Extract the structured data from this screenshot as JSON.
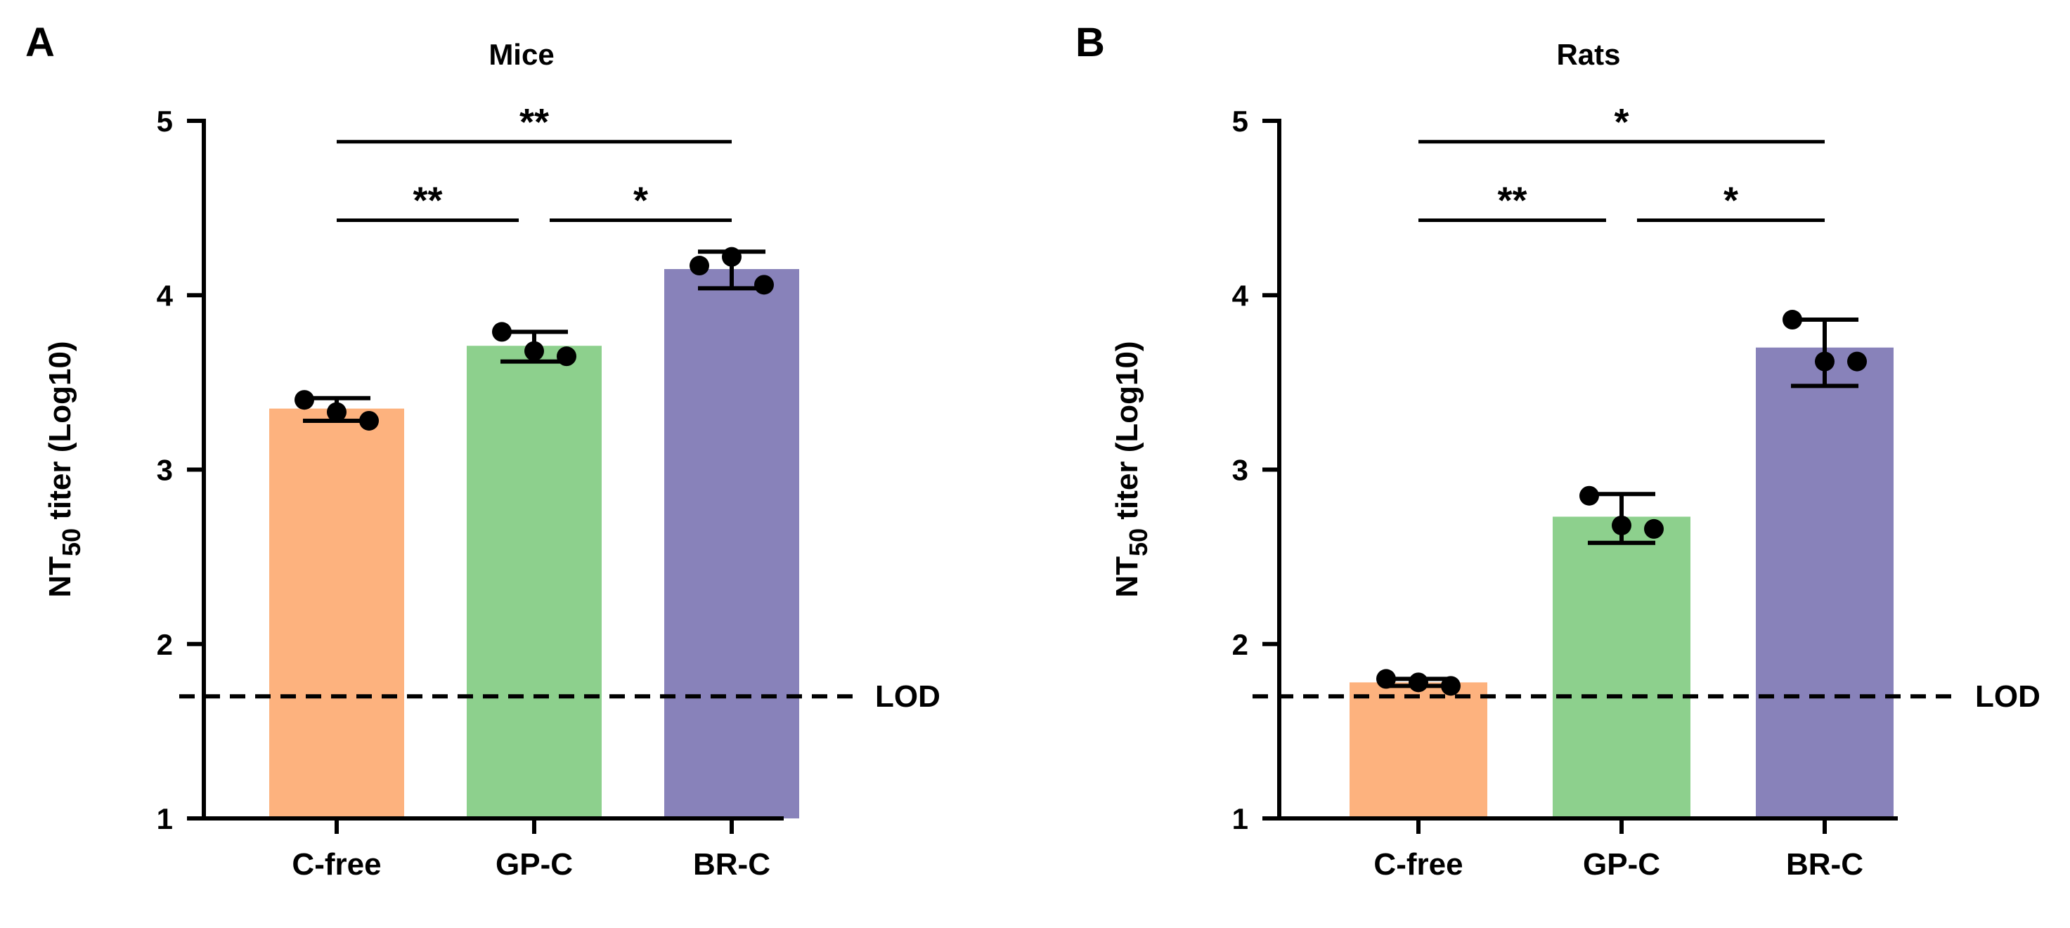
{
  "chart_data": [
    {
      "type": "bar",
      "panel": "A",
      "title": "Mice",
      "ylabel": {
        "main": "NT",
        "sub": "50",
        "rest": " titer (Log10)"
      },
      "ylim": [
        1,
        5
      ],
      "yticks": [
        "1",
        "2",
        "3",
        "4",
        "5"
      ],
      "categories": [
        "C-free",
        "GP-C",
        "BR-C"
      ],
      "values": [
        3.35,
        3.71,
        4.15
      ],
      "errors": [
        {
          "low": 3.28,
          "high": 3.41
        },
        {
          "low": 3.62,
          "high": 3.79
        },
        {
          "low": 4.04,
          "high": 4.25
        }
      ],
      "points": [
        [
          3.4,
          3.33,
          3.28
        ],
        [
          3.79,
          3.68,
          3.65
        ],
        [
          4.17,
          4.22,
          4.06
        ]
      ],
      "colors": [
        "#fdb27e",
        "#8dd08d",
        "#8882ba"
      ],
      "lod": {
        "label": "LOD",
        "value": 1.7
      },
      "significance": [
        {
          "from": 0,
          "to": 2,
          "label": "**",
          "level": 4.88
        },
        {
          "from": 0,
          "to": 1,
          "label": "**",
          "level": 4.43
        },
        {
          "from": 1,
          "to": 2,
          "label": "*",
          "level": 4.43
        }
      ]
    },
    {
      "type": "bar",
      "panel": "B",
      "title": "Rats",
      "ylabel": {
        "main": "NT",
        "sub": "50",
        "rest": " titer (Log10)"
      },
      "ylim": [
        1,
        5
      ],
      "yticks": [
        "1",
        "2",
        "3",
        "4",
        "5"
      ],
      "categories": [
        "C-free",
        "GP-C",
        "BR-C"
      ],
      "values": [
        1.78,
        2.73,
        3.7
      ],
      "errors": [
        {
          "low": 1.76,
          "high": 1.8
        },
        {
          "low": 2.58,
          "high": 2.86
        },
        {
          "low": 3.48,
          "high": 3.86
        }
      ],
      "points": [
        [
          1.8,
          1.78,
          1.76
        ],
        [
          2.85,
          2.68,
          2.66
        ],
        [
          3.86,
          3.62,
          3.62
        ]
      ],
      "colors": [
        "#fdb27e",
        "#8dd08d",
        "#8882ba"
      ],
      "lod": {
        "label": "LOD",
        "value": 1.7
      },
      "significance": [
        {
          "from": 0,
          "to": 2,
          "label": "*",
          "level": 4.88
        },
        {
          "from": 0,
          "to": 1,
          "label": "**",
          "level": 4.43
        },
        {
          "from": 1,
          "to": 2,
          "label": "*",
          "level": 4.43
        }
      ]
    }
  ]
}
